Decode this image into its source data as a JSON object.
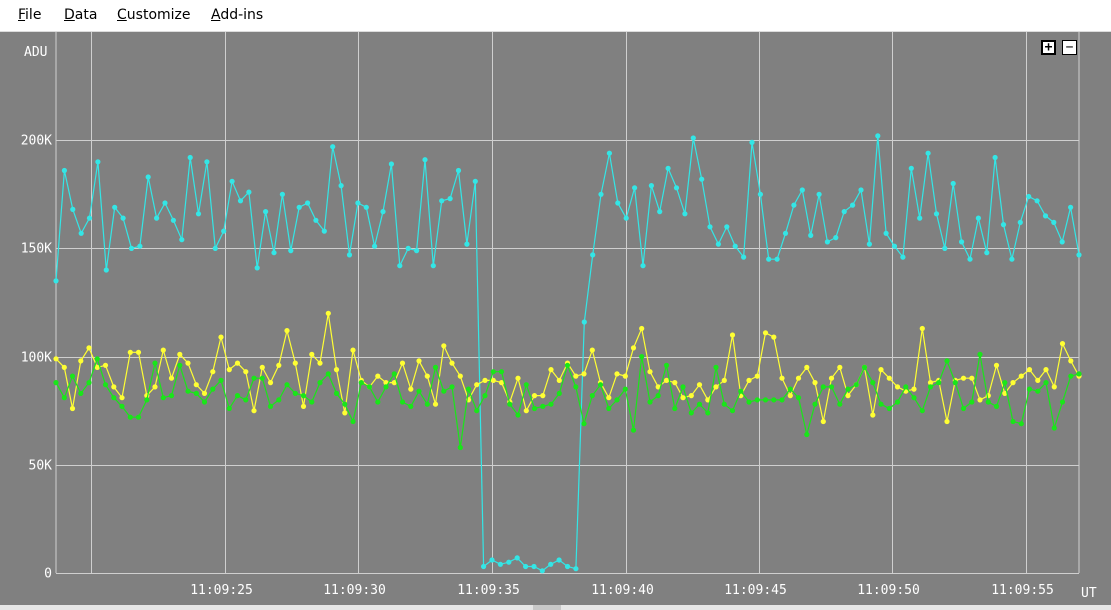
{
  "menu": {
    "file": {
      "key": "F",
      "rest": "ile"
    },
    "data": {
      "key": "D",
      "rest": "ata"
    },
    "customize": {
      "key": "C",
      "rest": "ustomize"
    },
    "addins": {
      "key": "A",
      "rest": "dd-ins"
    }
  },
  "zoom": {
    "in_label": "+",
    "out_label": "−"
  },
  "chart_data": {
    "type": "line",
    "ylabel": "ADU",
    "xlabel": "UT",
    "ylim": [
      0,
      250000
    ],
    "xlim": [
      0,
      77
    ],
    "y_ticks": [
      {
        "v": 0,
        "label": "0"
      },
      {
        "v": 50000,
        "label": "50K"
      },
      {
        "v": 100000,
        "label": "100K"
      },
      {
        "v": 150000,
        "label": "150K"
      },
      {
        "v": 200000,
        "label": "200K"
      }
    ],
    "x_ticks": [
      {
        "v": 2.6,
        "label": ""
      },
      {
        "v": 12.7,
        "label": "11:09:25"
      },
      {
        "v": 22.7,
        "label": "11:09:30"
      },
      {
        "v": 32.8,
        "label": "11:09:35"
      },
      {
        "v": 42.9,
        "label": "11:09:40"
      },
      {
        "v": 52.9,
        "label": "11:09:45"
      },
      {
        "v": 62.9,
        "label": "11:09:50"
      },
      {
        "v": 73.0,
        "label": "11:09:55"
      }
    ],
    "grid": true,
    "series": [
      {
        "color": "#33e6e6",
        "values": [
          135000,
          186000,
          168000,
          157000,
          164000,
          190000,
          140000,
          169000,
          164000,
          150000,
          151000,
          183000,
          164000,
          171000,
          163000,
          154000,
          192000,
          166000,
          190000,
          150000,
          158000,
          181000,
          172000,
          176000,
          141000,
          167000,
          148000,
          175000,
          149000,
          169000,
          171000,
          163000,
          158000,
          197000,
          179000,
          147000,
          171000,
          169000,
          151000,
          167000,
          189000,
          142000,
          150000,
          149000,
          191000,
          142000,
          172000,
          173000,
          186000,
          152000,
          181000,
          3000,
          6000,
          4000,
          5000,
          7000,
          3000,
          3000,
          1000,
          4000,
          6000,
          3000,
          2000,
          116000,
          147000,
          175000,
          194000,
          171000,
          164000,
          178000,
          142000,
          179000,
          167000,
          187000,
          178000,
          166000,
          201000,
          182000,
          160000,
          152000,
          160000,
          151000,
          146000,
          199000,
          175000,
          145000,
          145000,
          157000,
          170000,
          177000,
          156000,
          175000,
          153000,
          155000,
          167000,
          170000,
          177000,
          152000,
          202000,
          157000,
          151000,
          146000,
          187000,
          164000,
          194000,
          166000,
          150000,
          180000,
          153000,
          145000,
          164000,
          148000,
          192000,
          161000,
          145000,
          162000,
          174000,
          172000,
          165000,
          162000,
          153000,
          169000,
          147000
        ]
      },
      {
        "color": "#ffff33",
        "values": [
          99000,
          95000,
          76000,
          98000,
          104000,
          95000,
          96000,
          86000,
          81000,
          102000,
          102000,
          82000,
          86000,
          103000,
          90000,
          101000,
          97000,
          87000,
          83000,
          93000,
          109000,
          94000,
          97000,
          93000,
          75000,
          95000,
          88000,
          96000,
          112000,
          97000,
          77000,
          101000,
          97000,
          120000,
          94000,
          74000,
          103000,
          89000,
          86000,
          91000,
          88000,
          88000,
          97000,
          85000,
          98000,
          91000,
          78000,
          105000,
          97000,
          91000,
          80000,
          87000,
          89000,
          89000,
          88000,
          79000,
          90000,
          75000,
          82000,
          82000,
          94000,
          89000,
          97000,
          91000,
          92000,
          103000,
          88000,
          81000,
          92000,
          91000,
          104000,
          113000,
          93000,
          86000,
          89000,
          88000,
          81000,
          82000,
          87000,
          80000,
          86000,
          89000,
          110000,
          82000,
          89000,
          91000,
          111000,
          109000,
          90000,
          82000,
          90000,
          95000,
          88000,
          70000,
          90000,
          95000,
          82000,
          87000,
          95000,
          73000,
          94000,
          90000,
          86000,
          84000,
          85000,
          113000,
          88000,
          89000,
          70000,
          89000,
          90000,
          90000,
          80000,
          82000,
          96000,
          83000,
          88000,
          91000,
          94000,
          89000,
          94000,
          86000,
          106000,
          98000,
          91000
        ]
      },
      {
        "color": "#19e619",
        "values": [
          88000,
          81000,
          91000,
          83000,
          88000,
          99000,
          87000,
          81000,
          77000,
          72000,
          72000,
          80000,
          97000,
          81000,
          82000,
          96000,
          84000,
          83000,
          79000,
          85000,
          89000,
          76000,
          82000,
          80000,
          90000,
          90000,
          77000,
          80000,
          87000,
          83000,
          82000,
          79000,
          88000,
          92000,
          83000,
          78000,
          70000,
          88000,
          86000,
          79000,
          86000,
          92000,
          79000,
          77000,
          84000,
          78000,
          95000,
          84000,
          86000,
          58000,
          85000,
          75000,
          82000,
          93000,
          93000,
          78000,
          73000,
          87000,
          76000,
          77000,
          78000,
          83000,
          96000,
          86000,
          69000,
          82000,
          87000,
          76000,
          80000,
          85000,
          66000,
          100000,
          79000,
          82000,
          96000,
          76000,
          86000,
          74000,
          78000,
          74000,
          95000,
          78000,
          75000,
          84000,
          79000,
          80000,
          80000,
          80000,
          80000,
          85000,
          81000,
          64000,
          78000,
          86000,
          86000,
          78000,
          85000,
          87000,
          95000,
          88000,
          78000,
          76000,
          79000,
          86000,
          81000,
          75000,
          86000,
          88000,
          98000,
          88000,
          76000,
          79000,
          101000,
          79000,
          77000,
          88000,
          70000,
          69000,
          85000,
          84000,
          88000,
          67000,
          79000,
          91000,
          92000
        ]
      }
    ]
  }
}
